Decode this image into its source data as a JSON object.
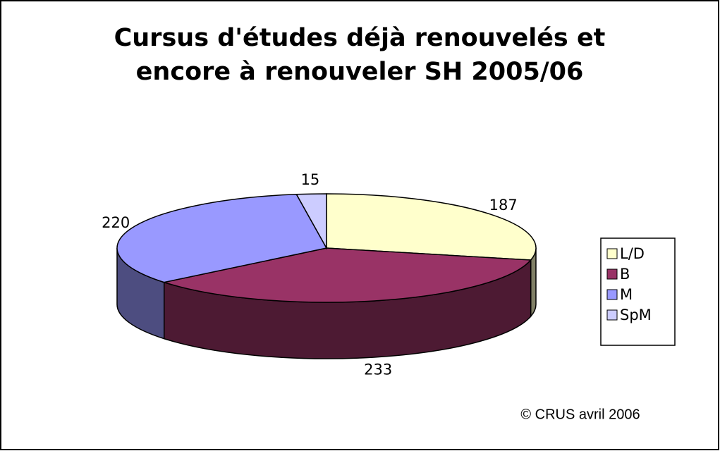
{
  "chart_data": {
    "type": "pie3d",
    "title": "Cursus d'études déjà renouvelés et encore à renouveler SH 2005/06",
    "categories": [
      "L/D",
      "B",
      "M",
      "SpM"
    ],
    "values": [
      187,
      233,
      220,
      15
    ],
    "colors": [
      "#ffffcc",
      "#993366",
      "#9999ff",
      "#ccccff"
    ],
    "legend": "right",
    "annotation": "© CRUS avril  2006"
  }
}
